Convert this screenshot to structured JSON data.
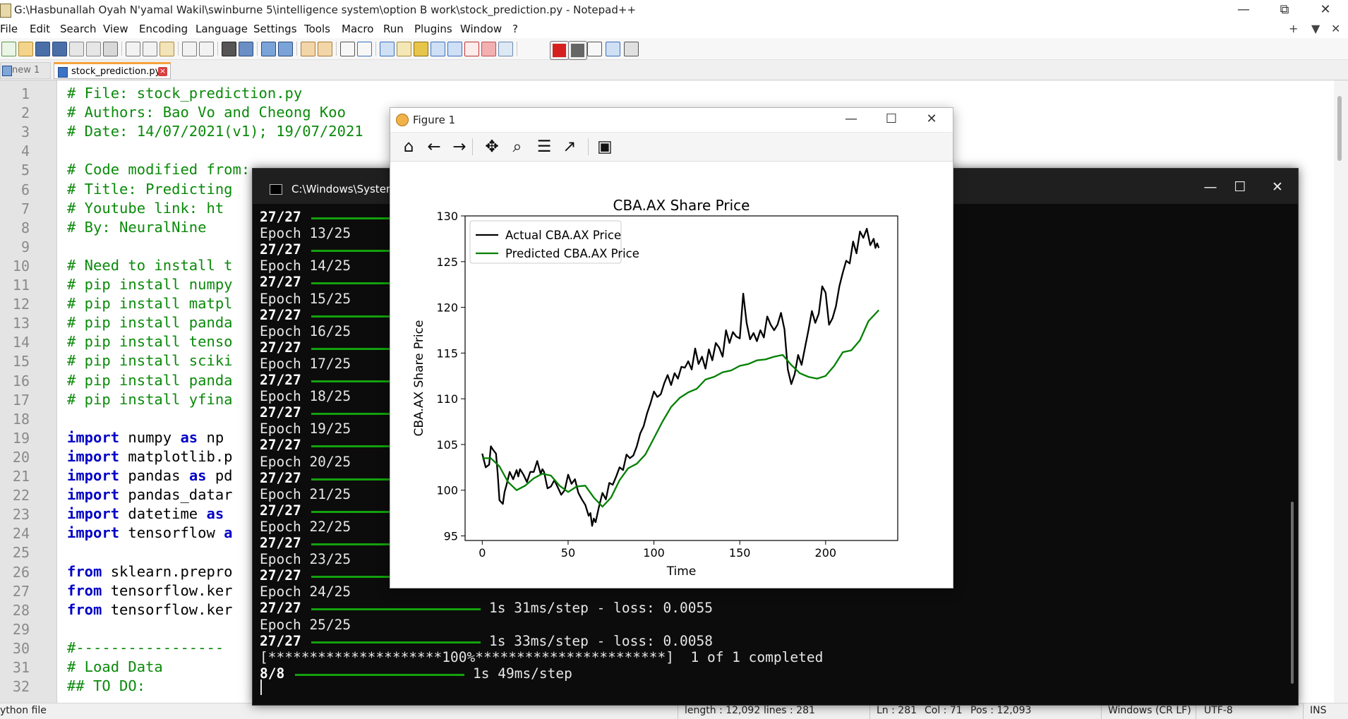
{
  "window": {
    "title": "G:\\Hasbunallah Oyah N'yamal Wakil\\swinburne 5\\intelligence system\\option B work\\stock_prediction.py - Notepad++",
    "minimize": "—",
    "maximize": "⧉",
    "close": "✕"
  },
  "menu": [
    "File",
    "Edit",
    "Search",
    "View",
    "Encoding",
    "Language",
    "Settings",
    "Tools",
    "Macro",
    "Run",
    "Plugins",
    "Window",
    "?"
  ],
  "menu_right": {
    "plus": "+",
    "down": "▼",
    "close": "✕"
  },
  "tabs": [
    {
      "label": "new 1",
      "active": false
    },
    {
      "label": "stock_prediction.py",
      "active": true
    }
  ],
  "editor": {
    "line_numbers": [
      "1",
      "2",
      "3",
      "4",
      "5",
      "6",
      "7",
      "8",
      "9",
      "10",
      "11",
      "12",
      "13",
      "14",
      "15",
      "16",
      "17",
      "18",
      "19",
      "20",
      "21",
      "22",
      "23",
      "24",
      "25",
      "26",
      "27",
      "28",
      "29",
      "30",
      "31",
      "32"
    ],
    "lines": [
      [
        {
          "t": "# File: stock_prediction.py",
          "s": "c"
        }
      ],
      [
        {
          "t": "# Authors: Bao Vo and Cheong Koo",
          "s": "c"
        }
      ],
      [
        {
          "t": "# Date: 14/07/2021(v1); 19/07/2021",
          "s": "c"
        }
      ],
      [],
      [
        {
          "t": "# Code modified from:",
          "s": "c"
        }
      ],
      [
        {
          "t": "# Title: Predicting",
          "s": "c"
        }
      ],
      [
        {
          "t": "# Youtube link: ht",
          "s": "c"
        }
      ],
      [
        {
          "t": "# By: NeuralNine",
          "s": "c"
        }
      ],
      [],
      [
        {
          "t": "# Need to install t",
          "s": "c"
        }
      ],
      [
        {
          "t": "# pip install numpy",
          "s": "c"
        }
      ],
      [
        {
          "t": "# pip install matpl",
          "s": "c"
        }
      ],
      [
        {
          "t": "# pip install panda",
          "s": "c"
        }
      ],
      [
        {
          "t": "# pip install tenso",
          "s": "c"
        }
      ],
      [
        {
          "t": "# pip install sciki",
          "s": "c"
        }
      ],
      [
        {
          "t": "# pip install panda",
          "s": "c"
        }
      ],
      [
        {
          "t": "# pip install yfina",
          "s": "c"
        }
      ],
      [],
      [
        {
          "t": "import",
          "s": "kw"
        },
        {
          "t": " numpy ",
          "s": ""
        },
        {
          "t": "as",
          "s": "kw"
        },
        {
          "t": " np",
          "s": ""
        }
      ],
      [
        {
          "t": "import",
          "s": "kw"
        },
        {
          "t": " matplotlib.p",
          "s": ""
        }
      ],
      [
        {
          "t": "import",
          "s": "kw"
        },
        {
          "t": " pandas ",
          "s": ""
        },
        {
          "t": "as",
          "s": "kw"
        },
        {
          "t": " pd",
          "s": ""
        }
      ],
      [
        {
          "t": "import",
          "s": "kw"
        },
        {
          "t": " pandas_datar",
          "s": ""
        }
      ],
      [
        {
          "t": "import",
          "s": "kw"
        },
        {
          "t": " datetime ",
          "s": ""
        },
        {
          "t": "as",
          "s": "kw"
        }
      ],
      [
        {
          "t": "import",
          "s": "kw"
        },
        {
          "t": " tensorflow ",
          "s": ""
        },
        {
          "t": "a",
          "s": "kw"
        }
      ],
      [],
      [
        {
          "t": "from",
          "s": "kw"
        },
        {
          "t": " sklearn.prepro",
          "s": ""
        }
      ],
      [
        {
          "t": "from",
          "s": "kw"
        },
        {
          "t": " tensorflow.ker",
          "s": ""
        }
      ],
      [
        {
          "t": "from",
          "s": "kw"
        },
        {
          "t": " tensorflow.ker",
          "s": ""
        }
      ],
      [],
      [
        {
          "t": "#-----------------",
          "s": "c"
        }
      ],
      [
        {
          "t": "# Load Data",
          "s": "c"
        }
      ],
      [
        {
          "t": "## TO DO:",
          "s": "c"
        }
      ]
    ]
  },
  "status": {
    "file_type": "ython file",
    "length": "length : 12,092",
    "lines": "lines : 281",
    "ln": "Ln : 281",
    "col": "Col : 71",
    "pos": "Pos : 12,093",
    "eol": "Windows (CR LF)",
    "encoding": "UTF-8",
    "mode": "INS"
  },
  "console": {
    "title": "C:\\Windows\\System",
    "minimize": "—",
    "maximize": "☐",
    "close": "✕",
    "lines": [
      {
        "text": "27/27",
        "bold": true,
        "bar": "short"
      },
      {
        "text": "Epoch 13/25"
      },
      {
        "text": "27/27",
        "bold": true,
        "bar": "short"
      },
      {
        "text": "Epoch 14/25"
      },
      {
        "text": "27/27",
        "bold": true,
        "bar": "short"
      },
      {
        "text": "Epoch 15/25"
      },
      {
        "text": "27/27",
        "bold": true,
        "bar": "short"
      },
      {
        "text": "Epoch 16/25"
      },
      {
        "text": "27/27",
        "bold": true,
        "bar": "short"
      },
      {
        "text": "Epoch 17/25"
      },
      {
        "text": "27/27",
        "bold": true,
        "bar": "short"
      },
      {
        "text": "Epoch 18/25"
      },
      {
        "text": "27/27",
        "bold": true,
        "bar": "short"
      },
      {
        "text": "Epoch 19/25"
      },
      {
        "text": "27/27",
        "bold": true,
        "bar": "short"
      },
      {
        "text": "Epoch 20/25"
      },
      {
        "text": "27/27",
        "bold": true,
        "bar": "short"
      },
      {
        "text": "Epoch 21/25"
      },
      {
        "text": "27/27",
        "bold": true,
        "bar": "short"
      },
      {
        "text": "Epoch 22/25"
      },
      {
        "text": "27/27",
        "bold": true,
        "bar": "short"
      },
      {
        "text": "Epoch 23/25"
      },
      {
        "text": "27/27",
        "bold": true,
        "bar": "short"
      },
      {
        "text": "Epoch 24/25"
      },
      {
        "text": "27/27",
        "bold": true,
        "bar": "full",
        "after": "1s 31ms/step - loss: 0.0055"
      },
      {
        "text": "Epoch 25/25"
      },
      {
        "text": "27/27",
        "bold": true,
        "bar": "full",
        "after": "1s 33ms/step - loss: 0.0058"
      },
      {
        "text": "[*********************100%***********************]  1 of 1 completed"
      },
      {
        "text": "8/8",
        "bold": true,
        "bar": "step",
        "after": "1s 49ms/step"
      }
    ]
  },
  "figure": {
    "title": "Figure 1",
    "minimize": "—",
    "maximize": "☐",
    "close": "✕",
    "toolbar": [
      {
        "name": "home-icon",
        "glyph": "⌂"
      },
      {
        "name": "back-icon",
        "glyph": "←"
      },
      {
        "name": "forward-icon",
        "glyph": "→"
      },
      {
        "name": "pan-icon",
        "glyph": "✥"
      },
      {
        "name": "zoom-icon",
        "glyph": "⌕"
      },
      {
        "name": "subplots-icon",
        "glyph": "☰"
      },
      {
        "name": "edit-axis-icon",
        "glyph": "↗"
      },
      {
        "name": "save-icon",
        "glyph": "▣"
      }
    ]
  },
  "chart_data": {
    "type": "line",
    "title": "CBA.AX Share Price",
    "xlabel": "Time",
    "ylabel": "CBA.AX Share Price",
    "xlim": [
      -10,
      242
    ],
    "ylim": [
      94.5,
      130
    ],
    "xticks": [
      0,
      50,
      100,
      150,
      200
    ],
    "yticks": [
      95,
      100,
      105,
      110,
      115,
      120,
      125,
      130
    ],
    "legend": "top-left",
    "grid": false,
    "series": [
      {
        "name": "Actual CBA.AX Price",
        "color": "#000000",
        "x": [
          0,
          2,
          4,
          5,
          6,
          8,
          9,
          10,
          12,
          13,
          14,
          16,
          18,
          20,
          21,
          22,
          24,
          26,
          28,
          30,
          32,
          34,
          35,
          36,
          38,
          40,
          42,
          44,
          46,
          48,
          50,
          52,
          54,
          56,
          58,
          60,
          62,
          63,
          64,
          65,
          66,
          68,
          70,
          72,
          74,
          76,
          78,
          80,
          82,
          84,
          86,
          88,
          90,
          92,
          94,
          96,
          98,
          100,
          102,
          104,
          106,
          108,
          110,
          112,
          114,
          116,
          118,
          120,
          122,
          124,
          126,
          128,
          130,
          132,
          134,
          136,
          138,
          140,
          142,
          144,
          146,
          148,
          150,
          152,
          154,
          156,
          158,
          160,
          162,
          164,
          166,
          168,
          170,
          172,
          174,
          176,
          178,
          180,
          182,
          184,
          186,
          188,
          190,
          192,
          194,
          196,
          198,
          200,
          202,
          204,
          206,
          208,
          210,
          212,
          214,
          216,
          218,
          220,
          222,
          224,
          226,
          228,
          229,
          230,
          231
        ],
        "y": [
          104,
          102.5,
          102.8,
          104.8,
          104.5,
          104,
          101.8,
          98.9,
          98.5,
          99.8,
          100.5,
          102,
          101.2,
          102.2,
          101.5,
          102.3,
          101.7,
          100.9,
          102,
          102,
          103.2,
          101.8,
          102.3,
          102,
          100.2,
          100.4,
          101.1,
          100.3,
          99.5,
          100,
          101.7,
          100.7,
          101.2,
          99.7,
          99,
          98.4,
          97.2,
          97.5,
          96.1,
          96.9,
          96.5,
          98.2,
          99.7,
          99,
          100.8,
          100.6,
          101.5,
          102.5,
          102.2,
          103.9,
          103.5,
          103.8,
          104.8,
          106.2,
          107,
          108.4,
          109.5,
          110.8,
          110.2,
          110.5,
          111.7,
          112.6,
          111.5,
          112.8,
          112.2,
          113.5,
          113.4,
          114.1,
          113.2,
          115.5,
          113.8,
          114.6,
          113.3,
          115.4,
          114.2,
          116.1,
          115.6,
          114.6,
          117.5,
          116.1,
          117.3,
          116.8,
          116.6,
          121.5,
          118.3,
          116.5,
          117.2,
          116.3,
          117.5,
          116.7,
          119,
          118.1,
          117.5,
          118.1,
          119.4,
          117.6,
          113.2,
          111.6,
          112.7,
          114.8,
          113.7,
          115.6,
          117.5,
          119.6,
          118.3,
          119.3,
          122.3,
          121.6,
          118.1,
          118.8,
          120.1,
          122.3,
          123.8,
          125.1,
          124.8,
          127.2,
          125.9,
          128.3,
          127.6,
          128.6,
          126.8,
          127.5,
          126.5,
          127,
          126.5
        ]
      },
      {
        "name": "Predicted CBA.AX Price",
        "color": "#008000",
        "x": [
          0,
          5,
          10,
          15,
          20,
          25,
          30,
          35,
          40,
          45,
          50,
          55,
          60,
          65,
          70,
          75,
          80,
          85,
          90,
          95,
          100,
          105,
          110,
          115,
          120,
          125,
          130,
          135,
          140,
          145,
          150,
          155,
          160,
          165,
          170,
          175,
          180,
          185,
          190,
          195,
          200,
          205,
          210,
          215,
          220,
          225,
          231
        ],
        "y": [
          103.5,
          103.5,
          102.6,
          100.9,
          100,
          100.5,
          101.3,
          101.8,
          101.6,
          100.5,
          99.8,
          100.4,
          100.5,
          99.2,
          98.2,
          99.2,
          101.1,
          102.4,
          102.9,
          103.9,
          105.7,
          107.5,
          109.1,
          110.1,
          110.7,
          111.1,
          112.1,
          112.4,
          112.9,
          113.1,
          113.6,
          113.8,
          114.2,
          114.3,
          114.6,
          114.8,
          113.7,
          112.8,
          112.4,
          112.2,
          112.5,
          113.6,
          115.1,
          115.3,
          116.4,
          118.5,
          119.7
        ]
      }
    ]
  }
}
